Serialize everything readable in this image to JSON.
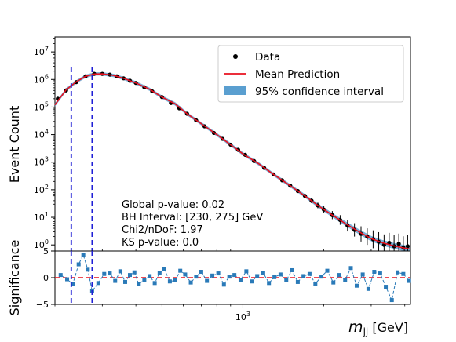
{
  "chart_data": [
    {
      "type": "scatter",
      "xscale": "log",
      "yscale": "log",
      "xlim": [
        200,
        4200
      ],
      "ylim": [
        0.6,
        35000000
      ],
      "ylabel": "Event Count",
      "grid": false,
      "legend_position": "top-right",
      "legend": [
        {
          "label": "Data",
          "marker": "dot",
          "color": "#000000"
        },
        {
          "label": "Mean Prediction",
          "marker": "line",
          "color": "#e8111f"
        },
        {
          "label": "95% confidence interval",
          "marker": "patch",
          "color": "#5a9fd0"
        }
      ],
      "annotations": [
        "Global p-value: 0.02",
        "BH Interval: [230, 275] GeV",
        "Chi2/nDoF: 1.97",
        "KS p-value: 0.0"
      ],
      "vlines": [
        230,
        275
      ],
      "vline_color": "#1f1fd6",
      "yticks": [
        {
          "value": 1,
          "label": "10",
          "exp": "0"
        },
        {
          "value": 10,
          "label": "10",
          "exp": "1"
        },
        {
          "value": 100,
          "label": "10",
          "exp": "2"
        },
        {
          "value": 1000,
          "label": "10",
          "exp": "3"
        },
        {
          "value": 10000,
          "label": "10",
          "exp": "4"
        },
        {
          "value": 100000,
          "label": "10",
          "exp": "5"
        },
        {
          "value": 1000000,
          "label": "10",
          "exp": "6"
        },
        {
          "value": 10000000,
          "label": "10",
          "exp": "7"
        }
      ],
      "series": [
        {
          "name": "Data",
          "color": "#000000",
          "x": [
            205,
            220,
            240,
            260,
            280,
            300,
            320,
            340,
            360,
            380,
            400,
            430,
            460,
            500,
            540,
            580,
            620,
            670,
            720,
            780,
            840,
            900,
            960,
            1020,
            1100,
            1200,
            1300,
            1400,
            1500,
            1600,
            1700,
            1800,
            1900,
            2000,
            2150,
            2300,
            2450,
            2600,
            2750,
            2900,
            3050,
            3200,
            3350,
            3500,
            3650,
            3800,
            3950,
            4100
          ],
          "y": [
            200000,
            400000,
            800000,
            1300000,
            1600000,
            1600000,
            1500000,
            1300000,
            1100000,
            900000,
            750000,
            520000,
            370000,
            230000,
            140000,
            90000,
            57000,
            33000,
            20000,
            11500,
            7000,
            4300,
            2800,
            1850,
            1100,
            620,
            360,
            220,
            140,
            90,
            60,
            40,
            27,
            19,
            12,
            8,
            5,
            3.5,
            2.5,
            2,
            1.6,
            1.3,
            1,
            1.2,
            0.9,
            1.1,
            0.8,
            0.9
          ]
        },
        {
          "name": "Mean Prediction",
          "color": "#e8111f",
          "x": [
            200,
            220,
            240,
            260,
            280,
            300,
            330,
            360,
            400,
            450,
            500,
            560,
            620,
            700,
            800,
            900,
            1000,
            1150,
            1300,
            1500,
            1700,
            1900,
            2100,
            2400,
            2700,
            3000,
            3300,
            3600,
            3900,
            4200
          ],
          "y": [
            120000,
            420000,
            820000,
            1300000,
            1580000,
            1600000,
            1400000,
            1100000,
            750000,
            440000,
            230000,
            130000,
            57000,
            25000,
            10000,
            4300,
            2000,
            850,
            360,
            140,
            60,
            27,
            14,
            6,
            3,
            1.7,
            1.2,
            0.95,
            0.8,
            0.7
          ]
        }
      ]
    },
    {
      "type": "scatter",
      "xscale": "log",
      "xlim": [
        200,
        4200
      ],
      "ylim": [
        -5,
        5
      ],
      "ylabel": "Significance",
      "xlabel_main": "m",
      "xlabel_sub": "jj",
      "xlabel_unit": " [GeV]",
      "xticks": [
        {
          "value": 1000,
          "label": "10",
          "exp": "3"
        }
      ],
      "yticks": [
        {
          "value": -5,
          "label": "−5"
        },
        {
          "value": 0,
          "label": "0"
        },
        {
          "value": 5,
          "label": "5"
        }
      ],
      "zero_line_color": "#e8111f",
      "vlines": [
        230,
        275
      ],
      "series": [
        {
          "name": "Significance",
          "color": "#2a7ab8",
          "x": [
            210,
            222,
            233,
            245,
            255,
            265,
            275,
            290,
            305,
            320,
            335,
            350,
            365,
            380,
            395,
            410,
            430,
            450,
            470,
            490,
            510,
            535,
            560,
            585,
            610,
            640,
            670,
            700,
            735,
            770,
            810,
            850,
            890,
            930,
            980,
            1030,
            1080,
            1130,
            1190,
            1250,
            1310,
            1380,
            1450,
            1520,
            1600,
            1680,
            1770,
            1860,
            1960,
            2060,
            2170,
            2280,
            2400,
            2520,
            2650,
            2790,
            2930,
            3080,
            3240,
            3400,
            3580,
            3760,
            3950,
            4150
          ],
          "y": [
            0.5,
            -0.3,
            -1.2,
            2.5,
            4.3,
            1.5,
            -2.5,
            -1.0,
            0.7,
            0.8,
            -0.6,
            1.2,
            -0.8,
            0.5,
            1.0,
            -1.2,
            -0.4,
            0.3,
            -1.0,
            0.9,
            1.6,
            -0.7,
            -0.5,
            1.3,
            0.6,
            -0.9,
            0.2,
            1.1,
            -0.6,
            0.4,
            0.8,
            -1.3,
            0.2,
            0.5,
            -0.4,
            1.2,
            -0.7,
            0.3,
            0.9,
            -1.0,
            0.1,
            0.6,
            -0.5,
            1.4,
            -0.8,
            0.3,
            0.7,
            -1.1,
            0.2,
            1.3,
            -0.9,
            0.5,
            -0.4,
            1.8,
            -1.5,
            0.6,
            -2.1,
            1.1,
            0.8,
            -1.7,
            -4.2,
            1.0,
            0.7,
            -0.6
          ]
        }
      ]
    }
  ]
}
